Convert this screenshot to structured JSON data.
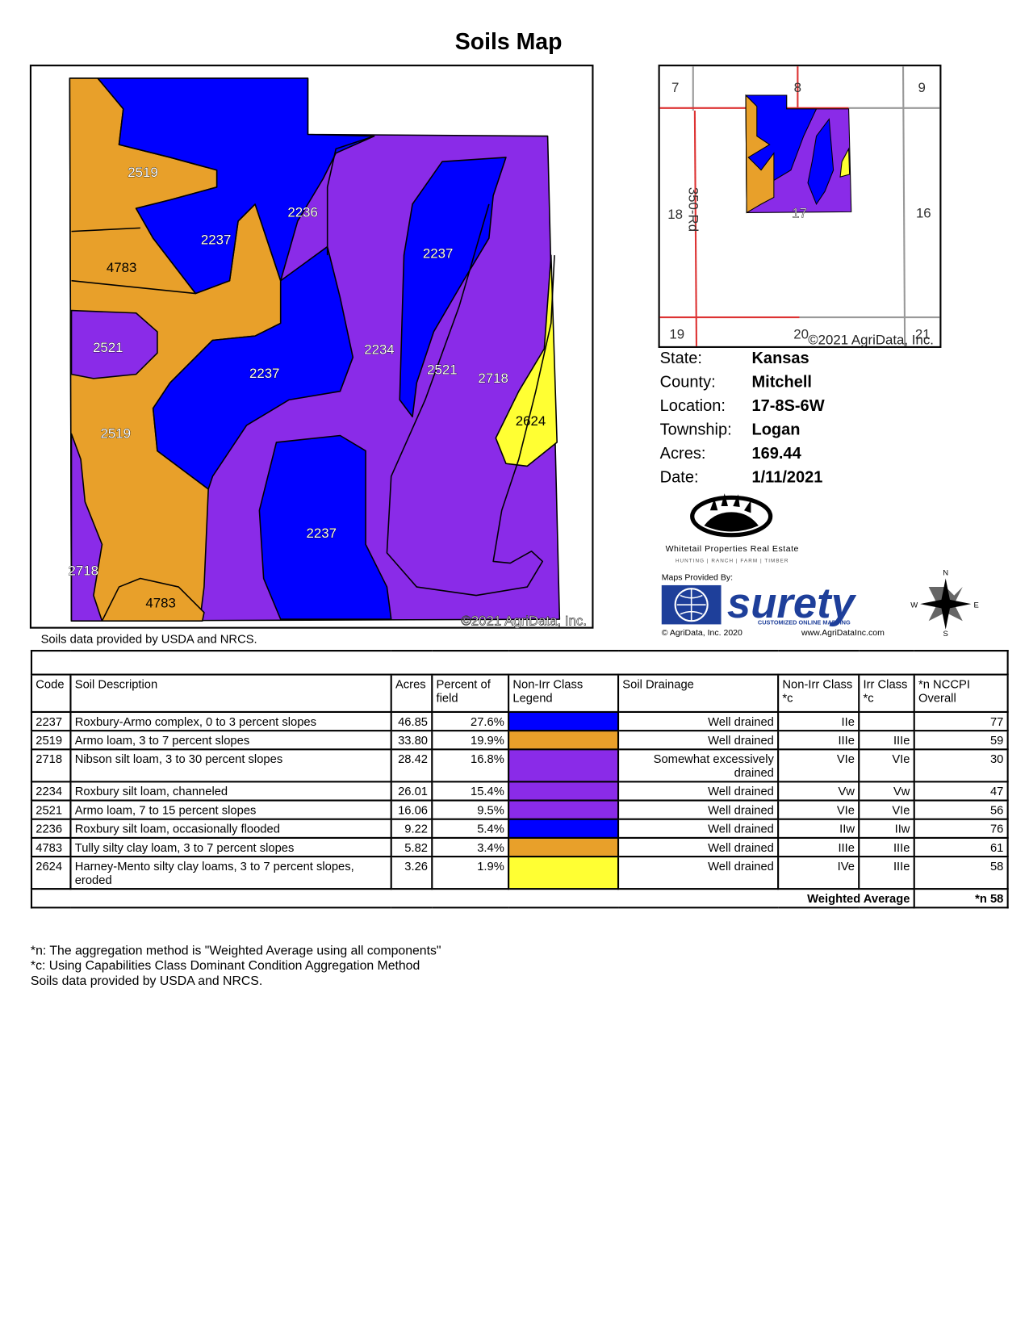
{
  "header": {
    "title": "Soils Map"
  },
  "map": {
    "labels": [
      "2519",
      "2236",
      "2237",
      "4783",
      "2237",
      "2521",
      "2234",
      "2237",
      "2521",
      "2718",
      "2624",
      "2519",
      "2237",
      "2718",
      "4783"
    ],
    "copyright": "©2021 AgriData, Inc.",
    "source": "Soils data provided by USDA and NRCS."
  },
  "inset": {
    "labels": [
      "7",
      "8",
      "9",
      "18",
      "16",
      "19",
      "20",
      "21",
      "17"
    ],
    "road": "350-Rd",
    "copyright": "©2021 AgriData, Inc."
  },
  "info": [
    {
      "key": "State:",
      "value": "Kansas"
    },
    {
      "key": "County:",
      "value": "Mitchell"
    },
    {
      "key": "Location:",
      "value": "17-8S-6W"
    },
    {
      "key": "Township:",
      "value": "Logan"
    },
    {
      "key": "Acres:",
      "value": "169.44"
    },
    {
      "key": "Date:",
      "value": "1/11/2021"
    }
  ],
  "logos": {
    "company": "Whitetail Properties Real Estate",
    "tagline": "HUNTING | RANCH | FARM | TIMBER",
    "maps_by": "Maps Provided By:",
    "brand": "surety",
    "brand_tagline": "CUSTOMIZED ONLINE MAPPING",
    "agri_copyright": "© AgriData, Inc. 2020",
    "agri_url": "www.AgriDataInc.com"
  },
  "compass": {
    "n": "N",
    "w": "W",
    "e": "E",
    "s": "S"
  },
  "table": {
    "header": [
      "Code",
      "Soil Description",
      "Acres",
      "Percent of field",
      "Non-Irr Class Legend",
      "Soil Drainage",
      "Non-Irr Class *c",
      "Irr Class *c",
      "*n NCCPI Overall"
    ],
    "rows": [
      {
        "cells": [
          "2237",
          "Roxbury-Armo complex, 0 to 3 percent slopes",
          "46.85",
          "27.6%",
          "Well drained",
          "IIe",
          "",
          "77"
        ],
        "color": "#0000ff"
      },
      {
        "cells": [
          "2519",
          "Armo loam, 3 to 7 percent slopes",
          "33.80",
          "19.9%",
          "Well drained",
          "IIIe",
          "IIIe",
          "59"
        ],
        "color": "#e8a02a"
      },
      {
        "cells": [
          "2718",
          "Nibson silt loam, 3 to 30 percent slopes",
          "28.42",
          "16.8%",
          "Somewhat excessively drained",
          "VIe",
          "VIe",
          "30"
        ],
        "color": "#8a2be8"
      },
      {
        "cells": [
          "2234",
          "Roxbury silt loam, channeled",
          "26.01",
          "15.4%",
          "Well drained",
          "Vw",
          "Vw",
          "47"
        ],
        "color": "#8a2be8"
      },
      {
        "cells": [
          "2521",
          "Armo loam, 7 to 15 percent slopes",
          "16.06",
          "9.5%",
          "Well drained",
          "VIe",
          "VIe",
          "56"
        ],
        "color": "#8a2be8"
      },
      {
        "cells": [
          "2236",
          "Roxbury silt loam, occasionally flooded",
          "9.22",
          "5.4%",
          "Well drained",
          "IIw",
          "IIw",
          "76"
        ],
        "color": "#0000ff"
      },
      {
        "cells": [
          "4783",
          "Tully silty clay loam, 3 to 7 percent slopes",
          "5.82",
          "3.4%",
          "Well drained",
          "IIIe",
          "IIIe",
          "61"
        ],
        "color": "#e8a02a"
      },
      {
        "cells": [
          "2624",
          "Harney-Mento silty clay loams, 3 to 7 percent slopes, eroded",
          "3.26",
          "1.9%",
          "Well drained",
          "IVe",
          "IIIe",
          "58"
        ],
        "color": "#ffff33"
      }
    ],
    "footer": {
      "label": "Weighted Average",
      "value": "*n 58"
    }
  },
  "notes": [
    "*n: The aggregation method is \"Weighted Average using all components\"",
    "*c: Using Capabilities Class Dominant Condition Aggregation Method",
    "Soils data provided by USDA and NRCS."
  ]
}
